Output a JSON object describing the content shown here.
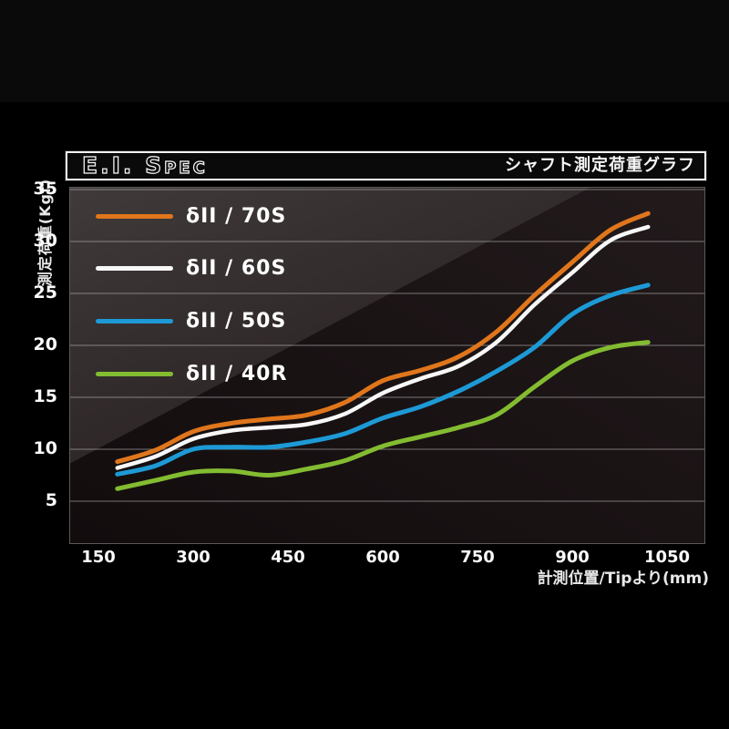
{
  "header": {
    "title": "E.I. Spec",
    "subtitle": "シャフト測定荷重グラフ"
  },
  "colors": {
    "canvas": "#000000",
    "plot_dark": "#140d0e",
    "plot_wedge_light": "#3f3939",
    "gridline": "#9a9a9a",
    "text": "#ffffff"
  },
  "chart_data": {
    "type": "line",
    "title": "E.I. Spec",
    "subtitle": "シャフト測定荷重グラフ",
    "xlabel": "計測位置/Tipより(mm)",
    "ylabel": "測定荷重(Kgf)",
    "x_ticks": [
      150,
      300,
      450,
      600,
      750,
      900,
      1050
    ],
    "y_ticks": [
      5,
      10,
      15,
      20,
      25,
      30,
      35
    ],
    "xlim": [
      105,
      1110
    ],
    "ylim": [
      1,
      35
    ],
    "grid": "horizontal-only",
    "legend_position": "overlay-top-left",
    "x": [
      180,
      240,
      300,
      360,
      420,
      480,
      540,
      600,
      660,
      720,
      780,
      840,
      900,
      960,
      1020
    ],
    "series": [
      {
        "id": "70s",
        "label": "δII / 70S",
        "color": "#e0761c",
        "stroke_width": 5,
        "values": [
          8.8,
          9.9,
          11.7,
          12.5,
          12.9,
          13.3,
          14.5,
          16.6,
          17.6,
          18.9,
          21.3,
          24.8,
          28.0,
          31.1,
          32.7
        ]
      },
      {
        "id": "60s",
        "label": "δII / 60S",
        "color": "#f7f7f7",
        "stroke_width": 4.5,
        "values": [
          8.2,
          9.3,
          11.0,
          11.8,
          12.1,
          12.4,
          13.4,
          15.4,
          16.8,
          18.0,
          20.3,
          23.9,
          27.0,
          30.1,
          31.4
        ]
      },
      {
        "id": "50s",
        "label": "δII / 50S",
        "color": "#1d9ad6",
        "stroke_width": 5,
        "values": [
          7.6,
          8.4,
          10.0,
          10.2,
          10.2,
          10.7,
          11.5,
          13.0,
          14.1,
          15.6,
          17.5,
          19.8,
          23.0,
          24.8,
          25.8
        ]
      },
      {
        "id": "40r",
        "label": "δII / 40R",
        "color": "#83bc31",
        "stroke_width": 5,
        "values": [
          6.2,
          7.0,
          7.8,
          7.9,
          7.5,
          8.1,
          8.9,
          10.3,
          11.2,
          12.1,
          13.3,
          16.0,
          18.5,
          19.8,
          20.3
        ]
      }
    ]
  }
}
